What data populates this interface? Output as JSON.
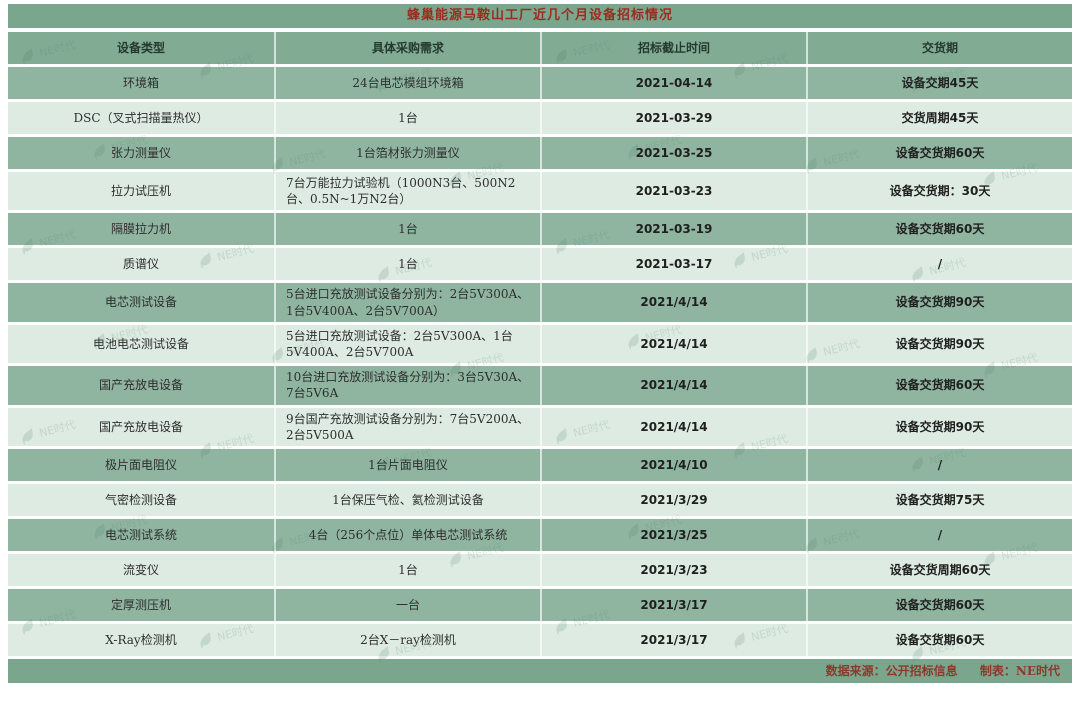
{
  "title": "蜂巢能源马鞍山工厂近几个月设备招标情况",
  "chart_data": {
    "type": "table",
    "title": "蜂巢能源马鞍山工厂近几个月设备招标情况",
    "columns": [
      "设备类型",
      "具体采购需求",
      "招标截止时间",
      "交货期"
    ],
    "rows": [
      [
        "环境箱",
        "24台电芯模组环境箱",
        "2021-04-14",
        "设备交期45天"
      ],
      [
        "DSC（叉式扫描量热仪）",
        "1台",
        "2021-03-29",
        "交货周期45天"
      ],
      [
        "张力测量仪",
        "1台箔材张力测量仪",
        "2021-03-25",
        "设备交货期60天"
      ],
      [
        "拉力试压机",
        "7台万能拉力试验机（1000N3台、500N2台、0.5N~1万N2台）",
        "2021-03-23",
        "设备交货期：30天"
      ],
      [
        "隔膜拉力机",
        "1台",
        "2021-03-19",
        "设备交货期60天"
      ],
      [
        "质谱仪",
        "1台",
        "2021-03-17",
        "/"
      ],
      [
        "电芯测试设备",
        "5台进口充放测试设备分别为：2台5V300A、1台5V400A、2台5V700A）",
        "2021/4/14",
        "设备交货期90天"
      ],
      [
        "电池电芯测试设备",
        "5台进口充放测试设备：2台5V300A、1台5V400A、2台5V700A",
        "2021/4/14",
        "设备交货期90天"
      ],
      [
        "国产充放电设备",
        "10台进口充放测试设备分别为：3台5V30A、7台5V6A",
        "2021/4/14",
        "设备交货期60天"
      ],
      [
        "国产充放电设备",
        "9台国产充放测试设备分别为：7台5V200A、2台5V500A",
        "2021/4/14",
        "设备交货期90天"
      ],
      [
        "极片面电阻仪",
        "1台片面电阻仪",
        "2021/4/10",
        "/"
      ],
      [
        "气密检测设备",
        "1台保压气检、氦检测试设备",
        "2021/3/29",
        "设备交货期75天"
      ],
      [
        "电芯测试系统",
        "4台（256个点位）单体电芯测试系统",
        "2021/3/25",
        "/"
      ],
      [
        "流变仪",
        "1台",
        "2021/3/23",
        "设备交货周期60天"
      ],
      [
        "定厚测压机",
        "一台",
        "2021/3/17",
        "设备交货期60天"
      ],
      [
        "X-Ray检测机",
        "2台X－ray检测机",
        "2021/3/17",
        "设备交货期60天"
      ]
    ]
  },
  "footer": {
    "source": "数据来源：公开招标信息",
    "maker": "制表：NE时代"
  },
  "watermark": {
    "label": "NE时代"
  },
  "colors": {
    "row_dark": "#8fb5a0",
    "row_light": "#ddebe2",
    "header_green": "#82ab94",
    "title_bar_green": "#7ba68e",
    "title_red": "#9a2c1e",
    "footer_text": "#8b3a2a"
  }
}
